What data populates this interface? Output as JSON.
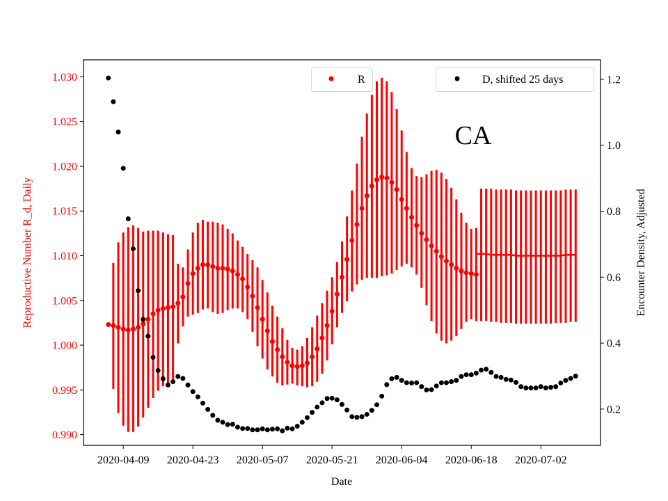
{
  "chart_data": {
    "type": "scatter",
    "annotation": "CA",
    "xlabel": "Date",
    "ylabel_left": "Reproductive Number R_d, Daily",
    "ylabel_right": "Encounter Density, Adjusted",
    "xlim": [
      "2020-04-01",
      "2020-07-14"
    ],
    "ylim_left": [
      0.9888,
      1.0319
    ],
    "ylim_right": [
      0.09,
      1.259
    ],
    "grid": false,
    "x_ticks": [
      "2020-04-09",
      "2020-04-23",
      "2020-05-07",
      "2020-05-21",
      "2020-06-04",
      "2020-06-18",
      "2020-07-02"
    ],
    "y_ticks_left": [
      "0.990",
      "0.995",
      "1.000",
      "1.005",
      "1.010",
      "1.015",
      "1.020",
      "1.025",
      "1.030"
    ],
    "y_ticks_right": [
      "0.2",
      "0.4",
      "0.6",
      "0.8",
      "1.0",
      "1.2"
    ],
    "colors": {
      "R": "#ff0000",
      "D": "#000000",
      "left_axis_text": "#ff0000"
    },
    "legends": [
      {
        "label": "R",
        "color": "#ff0000",
        "placement": "upper-center-right"
      },
      {
        "label": "D, shifted 25 days",
        "color": "#000000",
        "placement": "upper-right"
      }
    ],
    "x": [
      "2020-04-06",
      "2020-04-07",
      "2020-04-08",
      "2020-04-09",
      "2020-04-10",
      "2020-04-11",
      "2020-04-12",
      "2020-04-13",
      "2020-04-14",
      "2020-04-15",
      "2020-04-16",
      "2020-04-17",
      "2020-04-18",
      "2020-04-19",
      "2020-04-20",
      "2020-04-21",
      "2020-04-22",
      "2020-04-23",
      "2020-04-24",
      "2020-04-25",
      "2020-04-26",
      "2020-04-27",
      "2020-04-28",
      "2020-04-29",
      "2020-04-30",
      "2020-05-01",
      "2020-05-02",
      "2020-05-03",
      "2020-05-04",
      "2020-05-05",
      "2020-05-06",
      "2020-05-07",
      "2020-05-08",
      "2020-05-09",
      "2020-05-10",
      "2020-05-11",
      "2020-05-12",
      "2020-05-13",
      "2020-05-14",
      "2020-05-15",
      "2020-05-16",
      "2020-05-17",
      "2020-05-18",
      "2020-05-19",
      "2020-05-20",
      "2020-05-21",
      "2020-05-22",
      "2020-05-23",
      "2020-05-24",
      "2020-05-25",
      "2020-05-26",
      "2020-05-27",
      "2020-05-28",
      "2020-05-29",
      "2020-05-30",
      "2020-05-31",
      "2020-06-01",
      "2020-06-02",
      "2020-06-03",
      "2020-06-04",
      "2020-06-05",
      "2020-06-06",
      "2020-06-07",
      "2020-06-08",
      "2020-06-09",
      "2020-06-10",
      "2020-06-11",
      "2020-06-12",
      "2020-06-13",
      "2020-06-14",
      "2020-06-15",
      "2020-06-16",
      "2020-06-17",
      "2020-06-18",
      "2020-06-19",
      "2020-06-20",
      "2020-06-21",
      "2020-06-22",
      "2020-06-23",
      "2020-06-24",
      "2020-06-25",
      "2020-06-26",
      "2020-06-27",
      "2020-06-28",
      "2020-06-29",
      "2020-06-30",
      "2020-07-01",
      "2020-07-02",
      "2020-07-03",
      "2020-07-04",
      "2020-07-05",
      "2020-07-06",
      "2020-07-07",
      "2020-07-08",
      "2020-07-09"
    ],
    "series": [
      {
        "name": "R",
        "axis": "left",
        "style": "markers-with-errorbars",
        "values": [
          1.0023,
          1.0022,
          1.002,
          1.0018,
          1.0017,
          1.0018,
          1.002,
          1.0024,
          1.0029,
          1.0035,
          1.0039,
          1.0041,
          1.0042,
          1.0043,
          1.0047,
          1.0054,
          1.0069,
          1.008,
          1.0086,
          1.009,
          1.009,
          1.0088,
          1.0086,
          1.0086,
          1.0085,
          1.0083,
          1.0079,
          1.0074,
          1.0065,
          1.0055,
          1.0042,
          1.0029,
          1.0016,
          1.0004,
          0.9995,
          0.9987,
          0.9981,
          0.9977,
          0.9976,
          0.9977,
          0.998,
          0.9987,
          0.9996,
          1.0008,
          1.0022,
          1.0038,
          1.0057,
          1.0076,
          1.0096,
          1.0117,
          1.0135,
          1.0153,
          1.0167,
          1.0178,
          1.0185,
          1.0188,
          1.0187,
          1.0182,
          1.0174,
          1.0163,
          1.0153,
          1.0143,
          1.0134,
          1.0125,
          1.0118,
          1.0111,
          1.0105,
          1.0099,
          1.0094,
          1.009,
          1.0086,
          1.0083,
          1.0081,
          1.008,
          1.0079
        ],
        "lower": [
          1.0023,
          0.9951,
          0.9924,
          0.991,
          0.9903,
          0.9903,
          0.9909,
          0.9919,
          0.993,
          0.9941,
          0.9949,
          0.9954,
          0.9958,
          0.9962,
          1.0002,
          1.0021,
          1.0032,
          1.0034,
          1.0036,
          1.004,
          1.0041,
          1.0037,
          1.0035,
          1.0036,
          1.0039,
          1.0041,
          1.0041,
          1.0037,
          1.0029,
          1.0015,
          0.9999,
          0.9985,
          0.9973,
          0.9965,
          0.9958,
          0.9955,
          0.9956,
          0.9957,
          0.9955,
          0.9954,
          0.9953,
          0.9954,
          0.9959,
          0.9968,
          0.9983,
          1.0001,
          1.002,
          1.0036,
          1.0049,
          1.006,
          1.0068,
          1.0073,
          1.0075,
          1.0075,
          1.0075,
          1.0077,
          1.0078,
          1.008,
          1.0084,
          1.0088,
          1.0091,
          1.0087,
          1.0079,
          1.0064,
          1.0045,
          1.0027,
          1.0013,
          1.0005,
          1.0002,
          1.0005,
          1.001,
          1.0018,
          1.0026,
          1.0029,
          1.0027
        ],
        "upper": [
          1.0023,
          1.0092,
          1.0115,
          1.0126,
          1.0132,
          1.0134,
          1.0131,
          1.0127,
          1.0128,
          1.0128,
          1.0128,
          1.0126,
          1.0124,
          1.0123,
          1.0091,
          1.0087,
          1.0107,
          1.0126,
          1.0137,
          1.014,
          1.0138,
          1.0138,
          1.0137,
          1.0135,
          1.013,
          1.0125,
          1.0117,
          1.011,
          1.0102,
          1.0095,
          1.0087,
          1.0073,
          1.0059,
          1.0044,
          1.0032,
          1.0019,
          1.0006,
          0.9997,
          0.9995,
          0.9999,
          1.0008,
          1.002,
          1.0033,
          1.0047,
          1.0061,
          1.0076,
          1.0093,
          1.0116,
          1.0144,
          1.0173,
          1.0203,
          1.0233,
          1.0259,
          1.028,
          1.0295,
          1.0299,
          1.0295,
          1.0283,
          1.0264,
          1.024,
          1.0216,
          1.0198,
          1.0189,
          1.0188,
          1.0191,
          1.0195,
          1.0196,
          1.0193,
          1.0186,
          1.0176,
          1.0163,
          1.0148,
          1.0137,
          1.013,
          1.0131
        ]
      },
      {
        "axis": "left",
        "style": "line-with-errorbars",
        "x": [
          "2020-06-19",
          "2020-06-20",
          "2020-06-21",
          "2020-06-22",
          "2020-06-23",
          "2020-06-24",
          "2020-06-25",
          "2020-06-26",
          "2020-06-27",
          "2020-06-28",
          "2020-06-29",
          "2020-06-30",
          "2020-07-01",
          "2020-07-02",
          "2020-07-03",
          "2020-07-04",
          "2020-07-05",
          "2020-07-06",
          "2020-07-07",
          "2020-07-08",
          "2020-07-09"
        ],
        "values": [
          1.0102,
          1.0102,
          1.0102,
          1.0101,
          1.0101,
          1.0101,
          1.0101,
          1.0101,
          1.01,
          1.01,
          1.01,
          1.01,
          1.01,
          1.01,
          1.01,
          1.01,
          1.01,
          1.01,
          1.0101,
          1.0101,
          1.0101
        ],
        "lower": [
          null,
          1.0027,
          1.0027,
          1.0026,
          1.0026,
          1.0025,
          1.0025,
          1.0025,
          1.0024,
          1.0024,
          1.0024,
          1.0024,
          1.0024,
          1.0024,
          1.0024,
          1.0024,
          1.0025,
          1.0025,
          1.0025,
          1.0026,
          1.0026
        ],
        "upper": [
          null,
          1.0175,
          1.0175,
          1.0175,
          1.0174,
          1.0174,
          1.0174,
          1.0174,
          1.0173,
          1.0173,
          1.0173,
          1.0173,
          1.0173,
          1.0173,
          1.0173,
          1.0173,
          1.0173,
          1.0173,
          1.0174,
          1.0174,
          1.0174
        ]
      },
      {
        "name": "D, shifted 25 days",
        "axis": "right",
        "style": "markers",
        "values": [
          1.204,
          1.132,
          1.04,
          0.93,
          0.777,
          0.686,
          0.559,
          0.472,
          0.421,
          0.357,
          0.317,
          0.292,
          0.273,
          0.283,
          0.299,
          0.293,
          0.273,
          0.253,
          0.237,
          0.218,
          0.199,
          0.181,
          0.166,
          0.16,
          0.153,
          0.154,
          0.145,
          0.141,
          0.141,
          0.137,
          0.137,
          0.14,
          0.137,
          0.139,
          0.14,
          0.134,
          0.142,
          0.14,
          0.148,
          0.16,
          0.174,
          0.19,
          0.206,
          0.219,
          0.232,
          0.233,
          0.228,
          0.214,
          0.197,
          0.177,
          0.175,
          0.177,
          0.184,
          0.196,
          0.213,
          0.239,
          0.274,
          0.292,
          0.296,
          0.287,
          0.28,
          0.279,
          0.28,
          0.268,
          0.258,
          0.259,
          0.27,
          0.28,
          0.28,
          0.283,
          0.287,
          0.299,
          0.304,
          0.304,
          0.309,
          0.318,
          0.321,
          0.311,
          0.299,
          0.296,
          0.29,
          0.288,
          0.281,
          0.268,
          0.264,
          0.264,
          0.264,
          0.268,
          0.264,
          0.266,
          0.268,
          0.279,
          0.287,
          0.293,
          0.3
        ]
      }
    ]
  }
}
